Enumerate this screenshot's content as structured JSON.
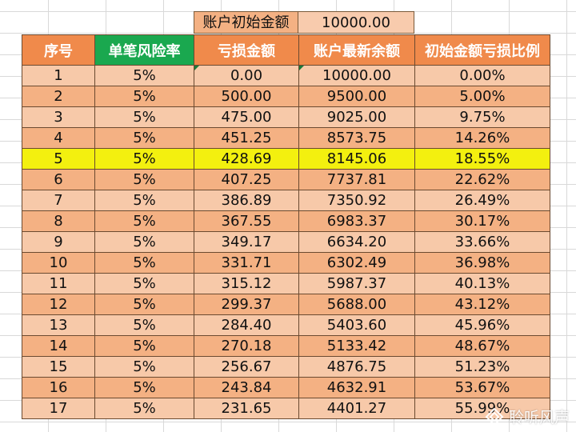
{
  "colors": {
    "header_orange": "#f08a4b",
    "header_green": "#1aa84f",
    "row_light": "#f7c9a9",
    "row_dark": "#f4b183",
    "highlight": "#f3f00f"
  },
  "info": {
    "label": "账户初始金额",
    "value": "10000.00"
  },
  "table": {
    "headers": [
      "序号",
      "单笔风险率",
      "亏损金额",
      "账户最新余额",
      "初始金额亏损比例"
    ],
    "highlight_row": "5",
    "rows": [
      [
        "1",
        "5%",
        "0.00",
        "10000.00",
        "0.00%"
      ],
      [
        "2",
        "5%",
        "500.00",
        "9500.00",
        "5.00%"
      ],
      [
        "3",
        "5%",
        "475.00",
        "9025.00",
        "9.75%"
      ],
      [
        "4",
        "5%",
        "451.25",
        "8573.75",
        "14.26%"
      ],
      [
        "5",
        "5%",
        "428.69",
        "8145.06",
        "18.55%"
      ],
      [
        "6",
        "5%",
        "407.25",
        "7737.81",
        "22.62%"
      ],
      [
        "7",
        "5%",
        "386.89",
        "7350.92",
        "26.49%"
      ],
      [
        "8",
        "5%",
        "367.55",
        "6983.37",
        "30.17%"
      ],
      [
        "9",
        "5%",
        "349.17",
        "6634.20",
        "33.66%"
      ],
      [
        "10",
        "5%",
        "331.71",
        "6302.49",
        "36.98%"
      ],
      [
        "11",
        "5%",
        "315.12",
        "5987.37",
        "40.13%"
      ],
      [
        "12",
        "5%",
        "299.37",
        "5688.00",
        "43.12%"
      ],
      [
        "13",
        "5%",
        "284.40",
        "5403.60",
        "45.96%"
      ],
      [
        "14",
        "5%",
        "270.18",
        "5133.42",
        "48.67%"
      ],
      [
        "15",
        "5%",
        "256.67",
        "4876.75",
        "51.23%"
      ],
      [
        "16",
        "5%",
        "243.84",
        "4632.91",
        "53.67%"
      ],
      [
        "17",
        "5%",
        "231.65",
        "4401.27",
        "55.99%"
      ]
    ]
  },
  "watermark": {
    "text": "聆听风声",
    "icon": "watermark-logo-icon"
  }
}
